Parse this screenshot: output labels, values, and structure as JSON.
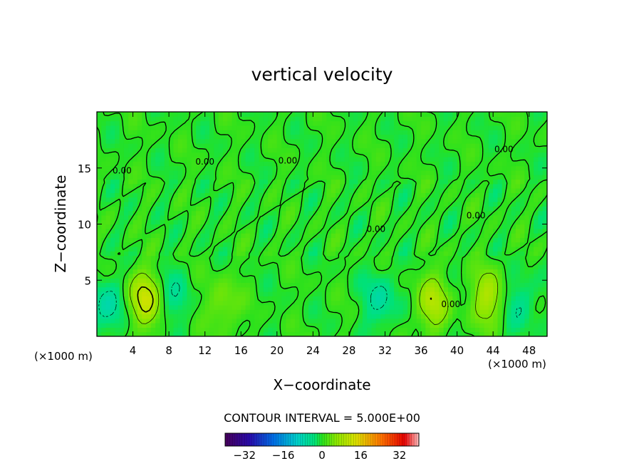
{
  "chart_data": {
    "type": "heatmap",
    "title": "vertical velocity",
    "xlabel": "X−coordinate",
    "ylabel": "Z−coordinate",
    "x_unit_left": "(×1000 m)",
    "x_unit_right": "(×1000 m)",
    "xlim": [
      0,
      50
    ],
    "ylim": [
      0,
      20
    ],
    "x_ticks": [
      4,
      8,
      12,
      16,
      20,
      24,
      28,
      32,
      36,
      40,
      44,
      48
    ],
    "y_ticks": [
      5,
      10,
      15
    ],
    "contour_interval_text": "CONTOUR INTERVAL = 5.000E+00",
    "contour_interval": 5,
    "colorbar": {
      "min": -40,
      "max": 40,
      "ticks": [
        -32,
        -16,
        0,
        16,
        32
      ],
      "tick_labels": [
        "−32",
        "−16",
        "0",
        "16",
        "32"
      ]
    },
    "contour_labels": [
      {
        "text": "0.00",
        "x": 2.8,
        "y": 14.5
      },
      {
        "text": "0.00",
        "x": 12.0,
        "y": 15.3
      },
      {
        "text": "0.00",
        "x": 21.2,
        "y": 15.4
      },
      {
        "text": "0.00",
        "x": 31.0,
        "y": 9.3
      },
      {
        "text": "0.00",
        "x": 39.3,
        "y": 2.6
      },
      {
        "text": "0.00",
        "x": 42.1,
        "y": 10.5
      },
      {
        "text": "0.00",
        "x": 45.2,
        "y": 16.4
      }
    ],
    "features": [
      {
        "kind": "updraft",
        "x": 5.2,
        "y": 3.3,
        "peak": 12
      },
      {
        "kind": "downdraft",
        "x": 8.5,
        "y": 3.7,
        "peak": -4
      },
      {
        "kind": "downdraft",
        "x": 1.2,
        "y": 2.7,
        "peak": -7
      },
      {
        "kind": "updraft",
        "x": 14.0,
        "y": 2.8,
        "peak": 5
      },
      {
        "kind": "downdraft",
        "x": 31.5,
        "y": 3.3,
        "peak": -6
      },
      {
        "kind": "updraft",
        "x": 37.3,
        "y": 3.0,
        "peak": 9
      },
      {
        "kind": "updraft",
        "x": 43.5,
        "y": 3.5,
        "peak": 9
      },
      {
        "kind": "downdraft",
        "x": 47.0,
        "y": 3.0,
        "peak": -5
      }
    ]
  }
}
